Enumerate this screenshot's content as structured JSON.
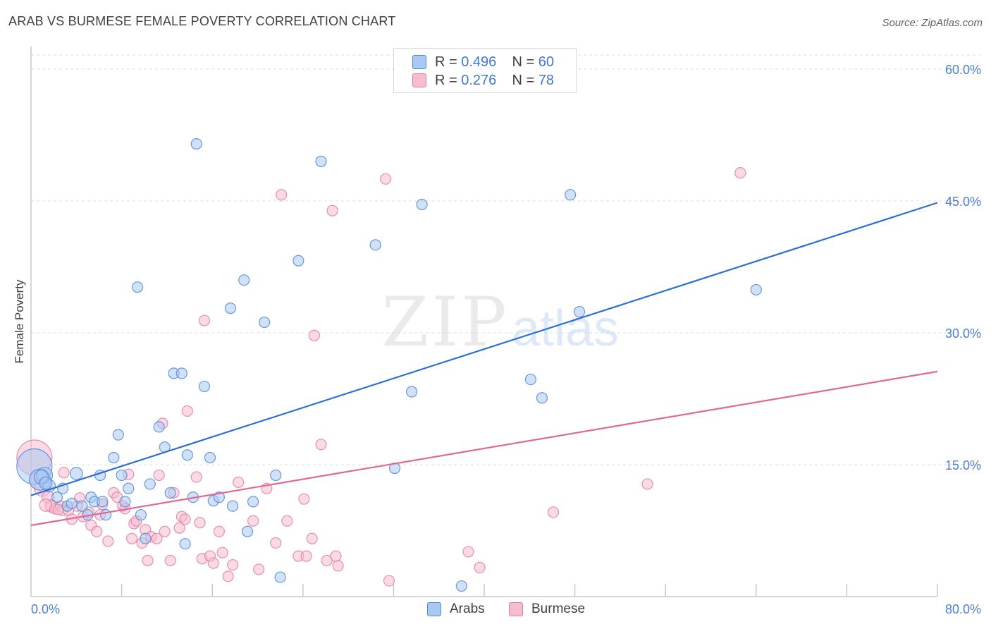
{
  "title": "ARAB VS BURMESE FEMALE POVERTY CORRELATION CHART",
  "source": "Source: ZipAtlas.com",
  "watermark": {
    "zip": "ZIP",
    "atlas": "atlas"
  },
  "legend": {
    "rows": [
      {
        "r_label": "R =",
        "r_value": "0.496",
        "n_label": "N =",
        "n_value": "60"
      },
      {
        "r_label": "R =",
        "r_value": "0.276",
        "n_label": "N =",
        "n_value": "78"
      }
    ],
    "bottom": [
      "Arabs",
      "Burmese"
    ]
  },
  "colors": {
    "arabs_fill": "#a9c8f2",
    "arabs_stroke": "#4f8ad8",
    "arabs_line": "#2c6fd1",
    "burmese_fill": "#f6bcd0",
    "burmese_stroke": "#e47ea0",
    "burmese_line": "#e06893",
    "tick_text": "#4a7fd4",
    "grid": "#dadce0"
  },
  "chart_data": {
    "type": "scatter",
    "title": "ARAB VS BURMESE FEMALE POVERTY CORRELATION CHART",
    "xlabel": "",
    "ylabel": "Female Poverty",
    "xlim": [
      0,
      80
    ],
    "ylim": [
      0,
      60
    ],
    "x_tick_labels": [
      "0.0%",
      "80.0%"
    ],
    "y_ticks": [
      15,
      30,
      45,
      60
    ],
    "y_tick_labels": [
      "15.0%",
      "30.0%",
      "45.0%",
      "60.0%"
    ],
    "grid": "horizontal dashed",
    "legend_position": "top-center",
    "series": [
      {
        "name": "Arabs",
        "r": 0.496,
        "n": 60,
        "trend": {
          "x": [
            0,
            80
          ],
          "y": [
            11.5,
            44.8
          ]
        },
        "points": [
          [
            0.3,
            14.8,
            20
          ],
          [
            0.8,
            13.3,
            12
          ],
          [
            1.2,
            13.8,
            9
          ],
          [
            1.6,
            12.6,
            7
          ],
          [
            2.3,
            11.3,
            6
          ],
          [
            2.8,
            12.3,
            6
          ],
          [
            3.2,
            10.3,
            6
          ],
          [
            3.6,
            10.6,
            6
          ],
          [
            4.0,
            14.0,
            7
          ],
          [
            4.5,
            10.3,
            6
          ],
          [
            5.0,
            9.3,
            6
          ],
          [
            5.3,
            11.3,
            6
          ],
          [
            5.6,
            10.8,
            6
          ],
          [
            6.1,
            13.8,
            6
          ],
          [
            6.3,
            10.8,
            6
          ],
          [
            6.6,
            9.3,
            6
          ],
          [
            7.3,
            15.8,
            6
          ],
          [
            7.7,
            18.4,
            6
          ],
          [
            8.0,
            13.8,
            6
          ],
          [
            8.3,
            10.8,
            6
          ],
          [
            8.6,
            12.3,
            6
          ],
          [
            9.4,
            35.2,
            6
          ],
          [
            9.7,
            9.3,
            6
          ],
          [
            10.1,
            6.6,
            6
          ],
          [
            10.5,
            12.8,
            6
          ],
          [
            11.3,
            19.3,
            6
          ],
          [
            11.8,
            17.0,
            6
          ],
          [
            12.3,
            11.8,
            6
          ],
          [
            12.6,
            25.4,
            6
          ],
          [
            13.3,
            25.4,
            6
          ],
          [
            13.6,
            6.0,
            6
          ],
          [
            13.8,
            16.1,
            6
          ],
          [
            14.3,
            11.3,
            6
          ],
          [
            14.6,
            51.5,
            6
          ],
          [
            15.3,
            23.9,
            6
          ],
          [
            15.8,
            15.8,
            6
          ],
          [
            16.1,
            10.9,
            6
          ],
          [
            16.6,
            11.3,
            6
          ],
          [
            17.6,
            32.8,
            6
          ],
          [
            17.8,
            10.3,
            6
          ],
          [
            18.8,
            36.0,
            6
          ],
          [
            19.1,
            7.4,
            6
          ],
          [
            19.6,
            10.8,
            6
          ],
          [
            20.6,
            31.2,
            6
          ],
          [
            21.6,
            13.8,
            6
          ],
          [
            22.0,
            2.2,
            6
          ],
          [
            23.6,
            38.2,
            6
          ],
          [
            25.6,
            49.5,
            6
          ],
          [
            30.4,
            40.0,
            6
          ],
          [
            32.1,
            14.6,
            6
          ],
          [
            33.6,
            23.3,
            6
          ],
          [
            34.5,
            44.6,
            6
          ],
          [
            38.0,
            1.2,
            6
          ],
          [
            44.1,
            24.7,
            6
          ],
          [
            45.1,
            22.6,
            6
          ],
          [
            47.6,
            45.7,
            6
          ],
          [
            48.4,
            32.4,
            6
          ],
          [
            64.0,
            34.9,
            6
          ],
          [
            0.9,
            13.6,
            8
          ],
          [
            1.3,
            12.9,
            7
          ]
        ]
      },
      {
        "name": "Burmese",
        "r": 0.276,
        "n": 78,
        "trend": {
          "x": [
            0,
            80
          ],
          "y": [
            8.1,
            25.6
          ]
        },
        "points": [
          [
            0.3,
            15.8,
            20
          ],
          [
            0.8,
            13.3,
            12
          ],
          [
            1.0,
            12.3,
            9
          ],
          [
            1.5,
            11.3,
            7
          ],
          [
            1.8,
            10.3,
            7
          ],
          [
            2.1,
            10.0,
            6
          ],
          [
            2.6,
            10.3,
            6
          ],
          [
            2.8,
            9.8,
            6
          ],
          [
            2.9,
            14.1,
            6
          ],
          [
            3.3,
            9.8,
            6
          ],
          [
            3.6,
            8.8,
            6
          ],
          [
            4.1,
            10.3,
            6
          ],
          [
            4.3,
            11.2,
            6
          ],
          [
            4.6,
            9.1,
            6
          ],
          [
            5.1,
            9.6,
            6
          ],
          [
            5.3,
            8.1,
            6
          ],
          [
            5.8,
            7.4,
            6
          ],
          [
            6.1,
            9.3,
            6
          ],
          [
            6.3,
            10.5,
            6
          ],
          [
            6.8,
            6.3,
            6
          ],
          [
            7.3,
            11.8,
            6
          ],
          [
            7.6,
            11.3,
            6
          ],
          [
            8.1,
            10.3,
            6
          ],
          [
            8.3,
            10.0,
            6
          ],
          [
            8.6,
            13.9,
            6
          ],
          [
            8.9,
            6.6,
            6
          ],
          [
            9.1,
            8.3,
            6
          ],
          [
            9.3,
            8.6,
            6
          ],
          [
            9.8,
            6.1,
            6
          ],
          [
            10.1,
            7.6,
            6
          ],
          [
            10.3,
            4.1,
            6
          ],
          [
            10.6,
            6.8,
            6
          ],
          [
            11.1,
            6.6,
            6
          ],
          [
            11.3,
            13.8,
            6
          ],
          [
            11.6,
            19.7,
            6
          ],
          [
            11.8,
            7.4,
            6
          ],
          [
            12.3,
            4.1,
            6
          ],
          [
            12.6,
            11.8,
            6
          ],
          [
            13.1,
            7.8,
            6
          ],
          [
            13.3,
            9.1,
            6
          ],
          [
            13.6,
            8.8,
            6
          ],
          [
            13.8,
            21.1,
            6
          ],
          [
            14.6,
            13.6,
            6
          ],
          [
            14.9,
            8.4,
            6
          ],
          [
            15.1,
            4.3,
            6
          ],
          [
            15.3,
            31.4,
            6
          ],
          [
            15.8,
            4.6,
            6
          ],
          [
            16.1,
            3.8,
            6
          ],
          [
            16.6,
            7.4,
            6
          ],
          [
            16.9,
            5.0,
            6
          ],
          [
            17.4,
            2.3,
            6
          ],
          [
            17.8,
            3.6,
            6
          ],
          [
            18.3,
            13.0,
            6
          ],
          [
            19.6,
            8.6,
            6
          ],
          [
            20.1,
            3.1,
            6
          ],
          [
            20.8,
            12.3,
            6
          ],
          [
            21.6,
            6.1,
            6
          ],
          [
            22.1,
            45.7,
            6
          ],
          [
            22.6,
            8.6,
            6
          ],
          [
            23.6,
            4.6,
            6
          ],
          [
            24.1,
            11.1,
            6
          ],
          [
            24.3,
            4.6,
            6
          ],
          [
            24.8,
            6.6,
            6
          ],
          [
            25.0,
            29.7,
            6
          ],
          [
            25.6,
            17.3,
            6
          ],
          [
            26.1,
            4.1,
            6
          ],
          [
            26.6,
            43.9,
            6
          ],
          [
            26.9,
            4.6,
            6
          ],
          [
            27.1,
            3.5,
            6
          ],
          [
            31.3,
            47.5,
            6
          ],
          [
            31.6,
            1.8,
            6
          ],
          [
            38.6,
            5.1,
            6
          ],
          [
            39.6,
            3.3,
            6
          ],
          [
            46.1,
            9.6,
            6
          ],
          [
            54.4,
            12.8,
            6
          ],
          [
            62.6,
            48.2,
            6
          ],
          [
            1.3,
            10.4,
            7
          ],
          [
            2.4,
            9.9,
            6
          ]
        ]
      }
    ]
  }
}
